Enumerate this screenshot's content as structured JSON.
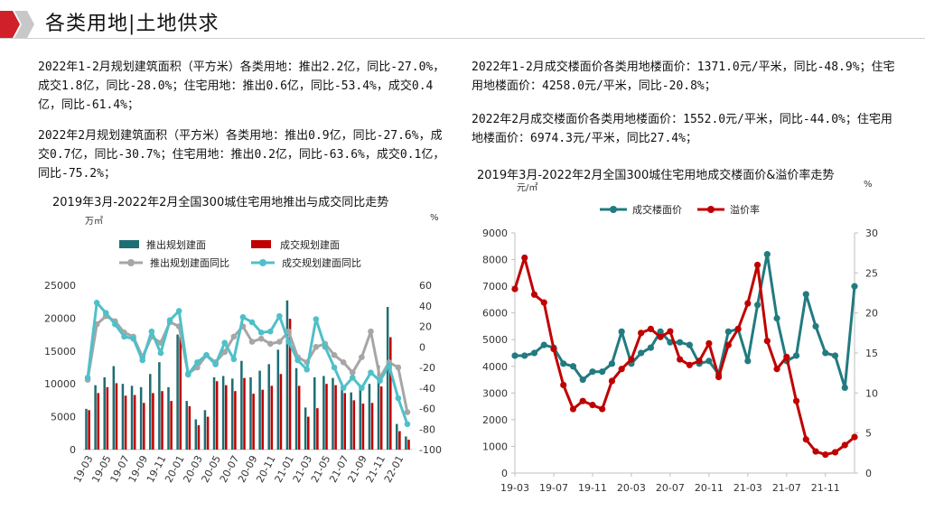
{
  "header": {
    "title_part1": "各类用地",
    "title_part2": "土地供求"
  },
  "paragraphs": {
    "p1": "2022年1-2月规划建筑面积（平方米）各类用地：推出2.2亿，同比-27.0%，成交1.8亿，同比-28.0%；住宅用地：推出0.6亿，同比-53.4%，成交0.4亿，同比-61.4%；",
    "p2": "2022年2月规划建筑面积（平方米）各类用地：推出0.9亿，同比-27.6%，成交0.7亿，同比-30.7%；住宅用地：推出0.2亿，同比-63.6%，成交0.1亿，同比-75.2%；",
    "p3": "2022年1-2月成交楼面价各类用地楼面价：1371.0元/平米，同比-48.9%；住宅用地楼面价：4258.0元/平米，同比-20.8%；",
    "p4": "2022年2月成交楼面价各类用地楼面价：1552.0元/平米，同比-44.0%；住宅用地楼面价：6974.3元/平米，同比27.4%；"
  },
  "colors": {
    "teal": "#1f6e73",
    "red": "#c00000",
    "gray": "#a6a6a6",
    "cyan": "#4fc0c8",
    "line_teal": "#217b80",
    "line_red": "#c00000",
    "logo_red": "#d0202a"
  },
  "chart_data": [
    {
      "type": "bar+line",
      "title": "2019年3月-2022年2月全国300城住宅用地推出与成交同比走势",
      "left_unit": "万㎡",
      "right_unit": "%",
      "ylim_left": [
        0,
        25000
      ],
      "yticks_left": [
        "0",
        "5000",
        "10000",
        "15000",
        "20000",
        "25000"
      ],
      "ylim_right": [
        -100,
        60
      ],
      "yticks_right": [
        "-100",
        "-80",
        "-60",
        "-40",
        "-20",
        "0",
        "20",
        "40",
        "60"
      ],
      "categories": [
        "19-03",
        "19-04",
        "19-05",
        "19-06",
        "19-07",
        "19-08",
        "19-09",
        "19-10",
        "19-11",
        "19-12",
        "20-01",
        "20-02",
        "20-03",
        "20-04",
        "20-05",
        "20-06",
        "20-07",
        "20-08",
        "20-09",
        "20-10",
        "20-11",
        "20-12",
        "21-01",
        "21-02",
        "21-03",
        "21-04",
        "21-05",
        "21-06",
        "21-07",
        "21-08",
        "21-09",
        "21-10",
        "21-11",
        "21-12",
        "22-01",
        "22-02"
      ],
      "xtick_labels": [
        "19-03",
        "19-05",
        "19-07",
        "19-09",
        "19-11",
        "20-01",
        "20-03",
        "20-05",
        "20-07",
        "20-09",
        "20-11",
        "21-01",
        "21-03",
        "21-05",
        "21-07",
        "21-09",
        "21-11",
        "22-01"
      ],
      "legend": [
        "推出规划建面",
        "成交规划建面",
        "推出规划建面同比",
        "成交规划建面同比"
      ],
      "series": [
        {
          "name": "推出规划建面",
          "type": "bar",
          "axis": "left",
          "values": [
            6200,
            9800,
            11000,
            12700,
            10000,
            9700,
            9500,
            11500,
            13300,
            9500,
            17500,
            7400,
            4600,
            6000,
            11000,
            11200,
            10800,
            13500,
            11000,
            12000,
            13000,
            15200,
            22700,
            12400,
            6400,
            11000,
            11200,
            10900,
            9700,
            8700,
            9800,
            10000,
            12800,
            21700,
            3900,
            2000
          ]
        },
        {
          "name": "成交规划建面",
          "type": "bar",
          "axis": "left",
          "values": [
            6000,
            8600,
            9500,
            10100,
            8200,
            8300,
            7100,
            8600,
            8900,
            7400,
            17200,
            6600,
            3700,
            5000,
            10400,
            9800,
            8900,
            10900,
            8500,
            9100,
            9700,
            11500,
            19900,
            9700,
            5000,
            6300,
            10000,
            9800,
            8600,
            7500,
            7000,
            7100,
            9600,
            17100,
            2800,
            1500
          ]
        },
        {
          "name": "推出规划建面同比",
          "type": "line",
          "axis": "right",
          "values": [
            -32,
            22,
            30,
            25,
            14,
            10,
            -10,
            10,
            4,
            24,
            20,
            -26,
            -20,
            -8,
            -15,
            -5,
            10,
            20,
            5,
            8,
            3,
            5,
            15,
            -10,
            -15,
            0,
            3,
            -8,
            -15,
            -25,
            -10,
            15,
            -30,
            -15,
            -20,
            -63.6
          ]
        },
        {
          "name": "成交规划建面同比",
          "type": "line",
          "axis": "right",
          "values": [
            -30,
            43,
            33,
            22,
            10,
            8,
            -13,
            15,
            -6,
            26,
            35,
            -27,
            -15,
            -8,
            -17,
            4,
            -12,
            29,
            24,
            14,
            15,
            30,
            5,
            -13,
            -22,
            27,
            0,
            -20,
            -40,
            -30,
            -40,
            -25,
            -33,
            -18,
            -50,
            -75.2
          ]
        }
      ]
    },
    {
      "type": "line",
      "title": "2019年3月-2022年2月全国300城住宅用地成交楼面价&溢价率走势",
      "left_unit": "元/㎡",
      "right_unit": "%",
      "ylim_left": [
        0,
        9000
      ],
      "yticks_left": [
        "0",
        "1000",
        "2000",
        "3000",
        "4000",
        "5000",
        "6000",
        "7000",
        "8000",
        "9000"
      ],
      "ylim_right": [
        0,
        30
      ],
      "yticks_right": [
        "0",
        "5",
        "10",
        "15",
        "20",
        "25",
        "30"
      ],
      "categories": [
        "19-03",
        "19-04",
        "19-05",
        "19-06",
        "19-07",
        "19-08",
        "19-09",
        "19-10",
        "19-11",
        "19-12",
        "20-01",
        "20-02",
        "20-03",
        "20-04",
        "20-05",
        "20-06",
        "20-07",
        "20-08",
        "20-09",
        "20-10",
        "20-11",
        "20-12",
        "21-01",
        "21-02",
        "21-03",
        "21-04",
        "21-05",
        "21-06",
        "21-07",
        "21-08",
        "21-09",
        "21-10",
        "21-11",
        "21-12",
        "22-01",
        "22-02"
      ],
      "xtick_labels": [
        "19-03",
        "19-07",
        "19-11",
        "20-03",
        "20-07",
        "20-11",
        "21-03",
        "21-07",
        "21-11"
      ],
      "legend": [
        "成交楼面价",
        "溢价率"
      ],
      "series": [
        {
          "name": "成交楼面价",
          "axis": "left",
          "values": [
            4400,
            4400,
            4500,
            4800,
            4700,
            4100,
            4000,
            3500,
            3800,
            3800,
            4100,
            5300,
            4100,
            4500,
            4700,
            5300,
            4900,
            4900,
            4800,
            4100,
            4200,
            3700,
            5300,
            5400,
            4200,
            6300,
            8200,
            5800,
            4200,
            4400,
            6700,
            5500,
            4500,
            4400,
            3200,
            7000
          ]
        },
        {
          "name": "溢价率",
          "axis": "right",
          "values": [
            23,
            26.9,
            22.3,
            21.3,
            15.5,
            11,
            8,
            9,
            8.5,
            8,
            11.5,
            13,
            14.2,
            17.5,
            18,
            17,
            17.7,
            14.2,
            13.5,
            14,
            16.2,
            12,
            16,
            18,
            21.2,
            26,
            16.5,
            13,
            14.5,
            9,
            4.2,
            2.7,
            2.3,
            2.6,
            3.5,
            4.5
          ]
        }
      ]
    }
  ]
}
